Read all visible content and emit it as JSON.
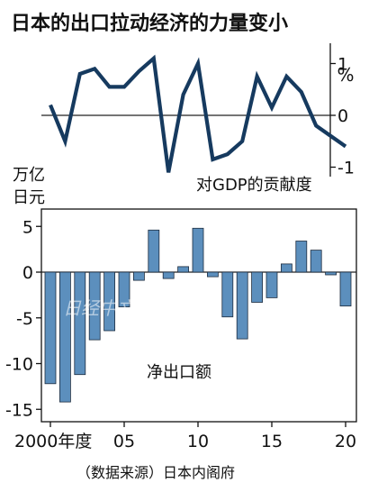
{
  "title": "日本的出口拉动经济的力量变小",
  "source": "（数据来源）日本内阁府",
  "watermark": "日经中文网",
  "colors": {
    "line": "#163a5f",
    "bar_fill": "#5c8fbd",
    "bar_stroke": "#1d2c3f",
    "axis": "#111111",
    "zero": "#222222"
  },
  "chart_data": [
    {
      "type": "line",
      "label": "对GDP的贡献度",
      "unit": "%",
      "ylim": [
        -1,
        1
      ],
      "yticks": [
        -1,
        0,
        1
      ],
      "ytick_labels": [
        "-1",
        "0",
        "1"
      ],
      "x": [
        2000,
        2001,
        2002,
        2003,
        2004,
        2005,
        2006,
        2007,
        2008,
        2009,
        2010,
        2011,
        2012,
        2013,
        2014,
        2015,
        2016,
        2017,
        2018,
        2019,
        2020
      ],
      "series": [
        {
          "values": [
            0.2,
            -0.5,
            0.8,
            0.9,
            0.55,
            0.55,
            0.85,
            1.1,
            -1.1,
            0.4,
            1.0,
            -0.85,
            -0.75,
            -0.5,
            0.75,
            0.15,
            0.75,
            0.45,
            -0.2,
            -0.4,
            -0.6
          ]
        }
      ]
    },
    {
      "type": "bar",
      "label": "净出口额",
      "ylabel": "万亿\n日元",
      "ylim": [
        -16,
        6
      ],
      "yticks": [
        -15,
        -10,
        -5,
        0,
        5
      ],
      "ytick_labels": [
        "-15",
        "-10",
        "-5",
        "0",
        "5"
      ],
      "xticks": [
        2000,
        2005,
        2010,
        2015,
        2020
      ],
      "xtick_labels": [
        "2000年度",
        "05",
        "10",
        "15",
        "20"
      ],
      "x": [
        2000,
        2001,
        2002,
        2003,
        2004,
        2005,
        2006,
        2007,
        2008,
        2009,
        2010,
        2011,
        2012,
        2013,
        2014,
        2015,
        2016,
        2017,
        2018,
        2019,
        2020
      ],
      "series": [
        {
          "values": [
            -12.2,
            -14.2,
            -11.2,
            -7.4,
            -6.4,
            -3.8,
            -0.9,
            4.6,
            -0.7,
            0.6,
            4.8,
            -0.5,
            -4.9,
            -7.3,
            -3.3,
            -2.8,
            0.9,
            3.4,
            2.4,
            -0.3,
            -3.7
          ]
        }
      ]
    }
  ]
}
